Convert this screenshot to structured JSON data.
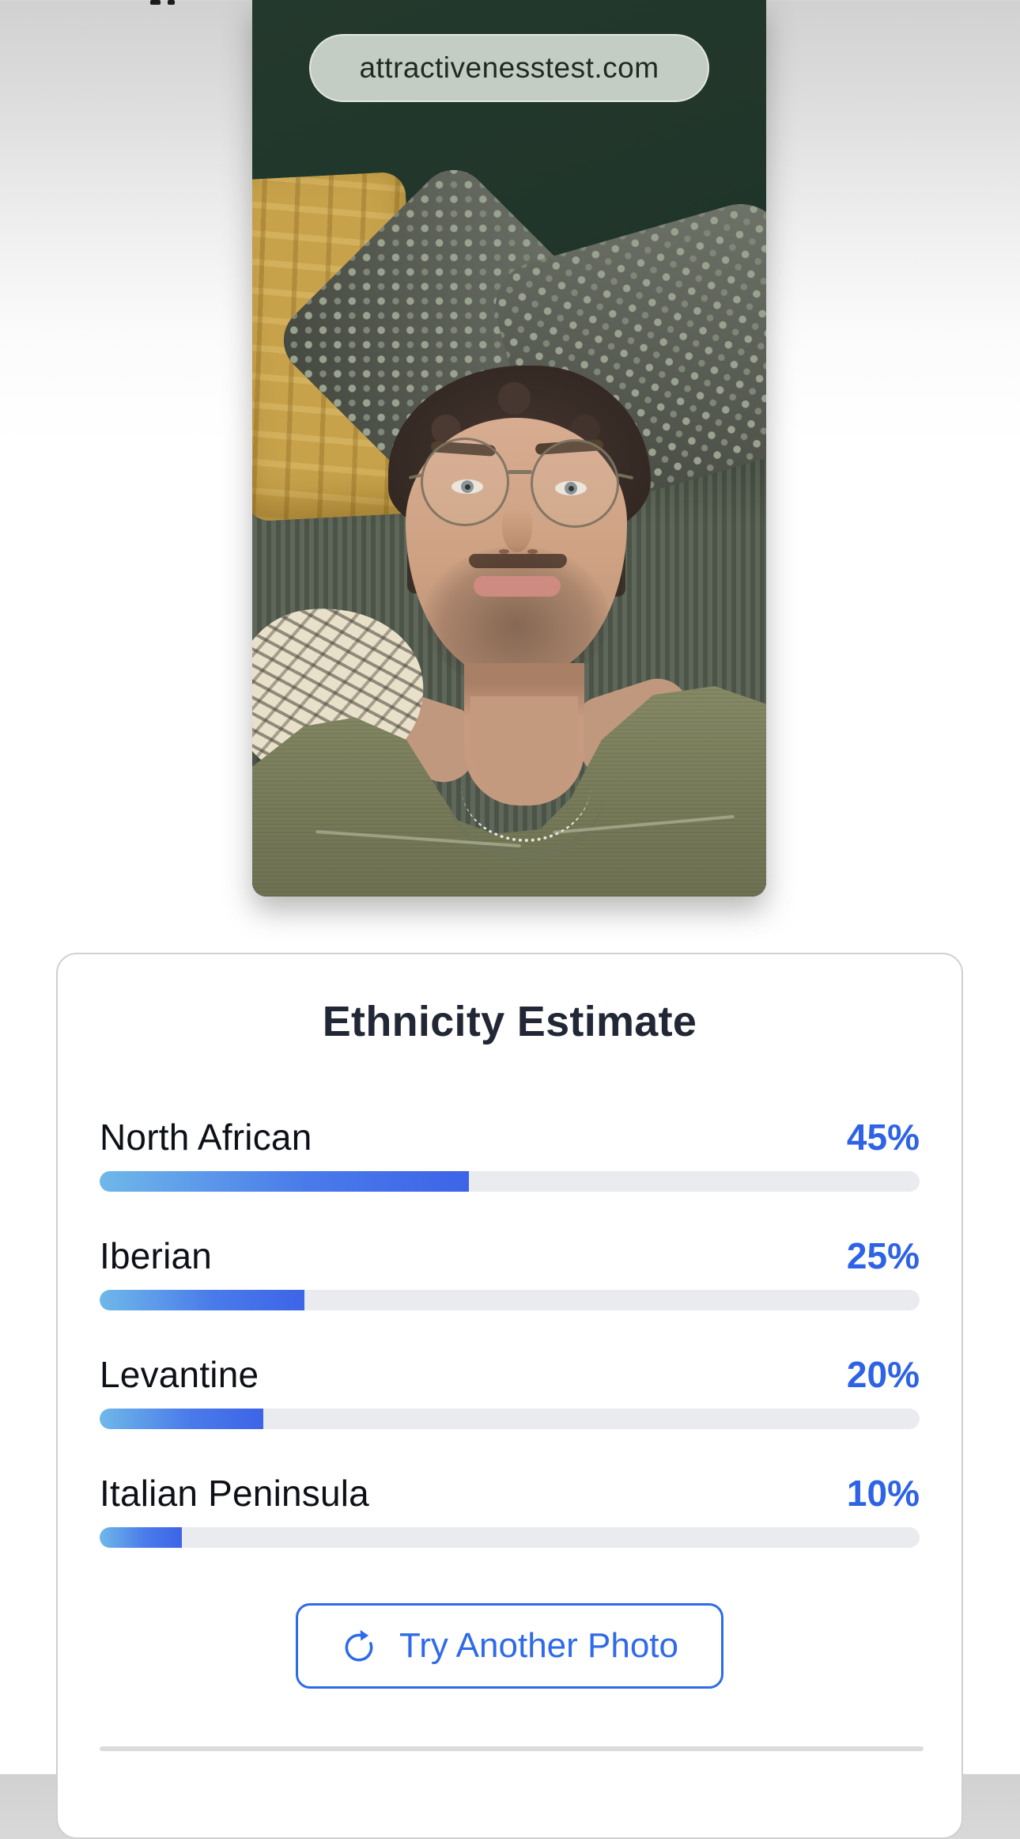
{
  "photo": {
    "badge_label": "attractivenesstest.com"
  },
  "ethnicity": {
    "title": "Ethnicity Estimate",
    "rows": [
      {
        "label": "North African",
        "percent": "45%",
        "value": 45
      },
      {
        "label": "Iberian",
        "percent": "25%",
        "value": 25
      },
      {
        "label": "Levantine",
        "percent": "20%",
        "value": 20
      },
      {
        "label": "Italian Peninsula",
        "percent": "10%",
        "value": 10
      }
    ],
    "try_another_label": "Try Another Photo"
  },
  "theme": {
    "accent_blue": "#2e63e6",
    "bar_gradient_start": "#6fb8e9",
    "bar_gradient_end": "#3d64e8",
    "bar_track": "#e9ebee",
    "badge_bg": "#ced7cd",
    "card_border": "#d0d0d0"
  }
}
